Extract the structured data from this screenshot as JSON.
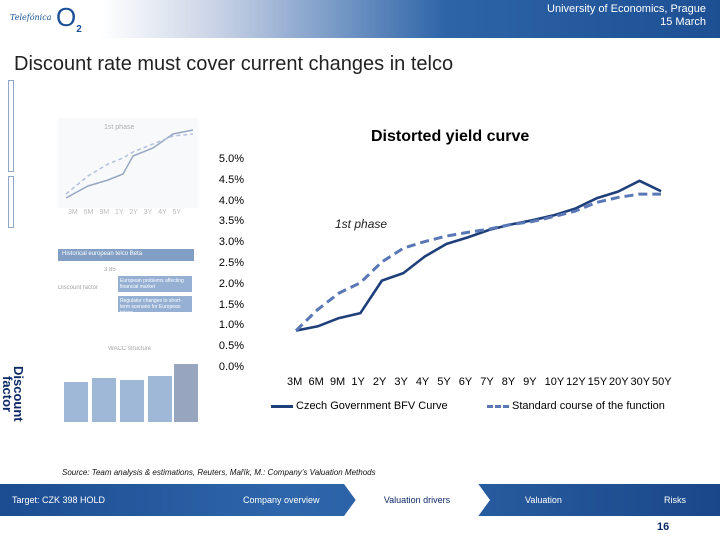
{
  "header": {
    "logo_telefonica": "Telefónica",
    "logo_o2": "O",
    "logo_o2_sub": "2",
    "line1": "University of Economics, Prague",
    "line2": "15 March"
  },
  "title": "Discount rate must cover current changes in telco",
  "side_label": "Discount factor",
  "background_snippets": {
    "small_chart_label": "1st phase",
    "hist_title": "Historical european telco Beta",
    "beta_label": "3.85",
    "box1": "European problems affecting financial market",
    "box2": "Regulator changes to short- term scenario for European telcos",
    "company_label": "Discount factor",
    "small_ticks": "3M 6M 9M 1Y 2Y 3Y 4Y 5Y",
    "wacc_title": "WACC structure"
  },
  "chart": {
    "title": "Distorted yield curve",
    "annotation": "1st phase"
  },
  "chart_data": {
    "type": "line",
    "title": "Distorted yield curve",
    "categories": [
      "3M",
      "6M",
      "9M",
      "1Y",
      "2Y",
      "3Y",
      "4Y",
      "5Y",
      "6Y",
      "7Y",
      "8Y",
      "9Y",
      "10Y",
      "12Y",
      "15Y",
      "20Y",
      "30Y",
      "50Y"
    ],
    "ylim": [
      0,
      5.0
    ],
    "yticks": [
      "5.0%",
      "4.5%",
      "4.0%",
      "3.5%",
      "3.0%",
      "2.5%",
      "2.0%",
      "1.5%",
      "1.0%",
      "0.5%",
      "0.0%"
    ],
    "series": [
      {
        "name": "Czech Government BFV Curve",
        "style": "solid",
        "color": "#1f3f7a",
        "values": [
          0.9,
          1.0,
          1.2,
          1.32,
          2.1,
          2.28,
          2.68,
          2.98,
          3.14,
          3.32,
          3.45,
          3.55,
          3.67,
          3.83,
          4.08,
          4.24,
          4.5,
          4.25
        ]
      },
      {
        "name": "Standard course of the function",
        "style": "dashed",
        "color": "#5a78b6",
        "values": [
          0.9,
          1.4,
          1.8,
          2.05,
          2.55,
          2.88,
          3.04,
          3.17,
          3.26,
          3.34,
          3.45,
          3.52,
          3.64,
          3.77,
          3.98,
          4.1,
          4.18,
          4.18
        ]
      }
    ],
    "legend_position": "bottom",
    "grid": false
  },
  "source": "Source: Team analysis & estimations, Reuters, Mařík, M.: Company’s Valuation Methods",
  "nav": {
    "items": [
      "Target: CZK 398 HOLD",
      "Company overview",
      "Valuation drivers",
      "Valuation",
      "Risks"
    ],
    "active_index": 2,
    "page_number": "16"
  },
  "colors": {
    "brand_blue": "#1b4f96",
    "nav_blue": "#2e66ab",
    "series_solid": "#1f3f7a",
    "series_dashed": "#5a78b6"
  }
}
